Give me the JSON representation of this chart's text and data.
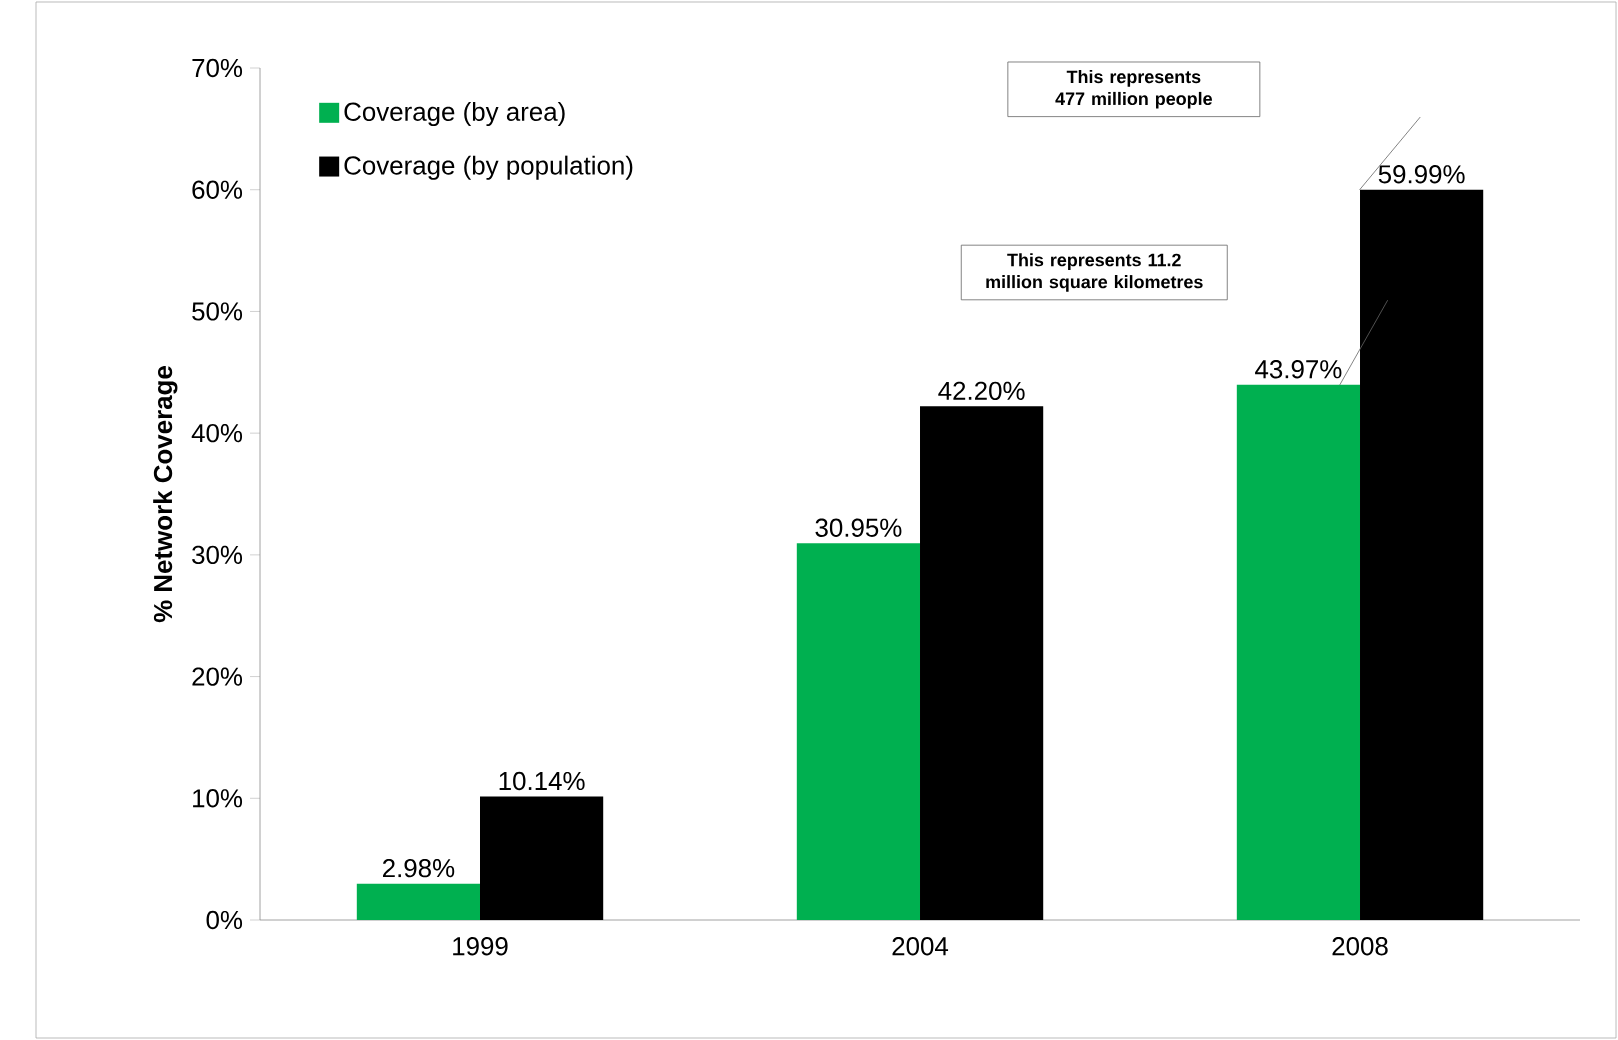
{
  "chart_data": {
    "type": "bar",
    "ylabel": "% Network Coverage",
    "categories": [
      "1999",
      "2004",
      "2008"
    ],
    "series": [
      {
        "name": "Coverage (by area)",
        "color": "#00b050",
        "values": [
          2.98,
          30.95,
          43.97
        ],
        "value_labels": [
          "2.98%",
          "30.95%",
          "43.97%"
        ]
      },
      {
        "name": "Coverage (by population)",
        "color": "#000000",
        "values": [
          10.14,
          42.2,
          59.99
        ],
        "value_labels": [
          "10.14%",
          "42.20%",
          "59.99%"
        ]
      }
    ],
    "ylim": [
      0,
      70
    ],
    "yticks": [
      {
        "value": 0,
        "label": "0%"
      },
      {
        "value": 10,
        "label": "10%"
      },
      {
        "value": 20,
        "label": "20%"
      },
      {
        "value": 30,
        "label": "30%"
      },
      {
        "value": 40,
        "label": "40%"
      },
      {
        "value": 50,
        "label": "50%"
      },
      {
        "value": 60,
        "label": "60%"
      },
      {
        "value": 70,
        "label": "70%"
      }
    ],
    "legend": "top left",
    "annotations": [
      "This represents 477 million people",
      "This represents 11.2 million square kilometres"
    ]
  }
}
